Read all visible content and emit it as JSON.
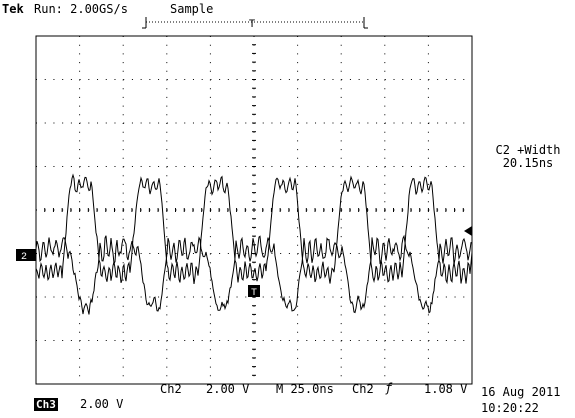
{
  "header": {
    "brand": "Tek",
    "run_status": "Run: 2.00GS/s",
    "acq_mode": "Sample",
    "trigger_marker": "T"
  },
  "measurement": {
    "label": "C2 +Width",
    "value": "20.15ns"
  },
  "markers": {
    "ch2_ground": "2",
    "trigger_point": "T"
  },
  "footer": {
    "ch2_label": "Ch2",
    "ch2_scale": "2.00 V",
    "timebase": "M 25.0ns",
    "trig_source": "Ch2",
    "trig_slope": "ƒ",
    "trig_level": "1.08 V",
    "ch3_label": "Ch3",
    "ch3_scale": "2.00 V",
    "date": "16 Aug 2011",
    "time": "10:20:22"
  },
  "colors": {
    "trace": "#000000",
    "background": "#ffffff"
  }
}
